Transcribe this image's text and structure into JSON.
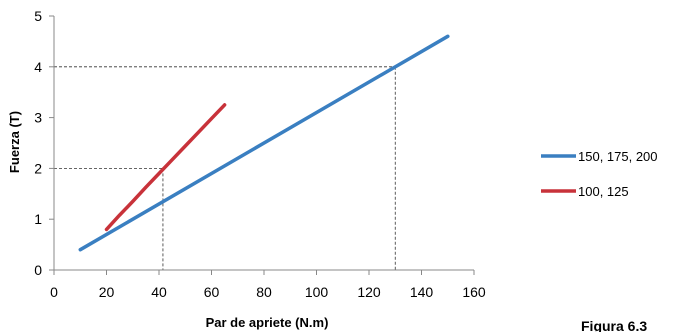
{
  "chart_data": {
    "type": "line",
    "xlabel": "Par de apriete (N.m)",
    "ylabel": "Fuerza (T)",
    "xlim": [
      0,
      160
    ],
    "ylim": [
      0,
      5
    ],
    "x_ticks": [
      0,
      20,
      40,
      60,
      80,
      100,
      120,
      140,
      160
    ],
    "y_ticks": [
      0,
      1,
      2,
      3,
      4,
      5
    ],
    "x_tick_labels": [
      "0",
      "20",
      "40",
      "60",
      "80",
      "100",
      "120",
      "140",
      "160"
    ],
    "y_tick_labels": [
      "0",
      "1",
      "2",
      "3",
      "4",
      "5"
    ],
    "grid": false,
    "legend_position": "right",
    "series": [
      {
        "name": "150, 175, 200",
        "color": "#3a7fc1",
        "x": [
          10,
          150
        ],
        "y": [
          0.4,
          4.6
        ]
      },
      {
        "name": "100, 125",
        "color": "#c8323a",
        "x": [
          20,
          25,
          30,
          35,
          40,
          45,
          50,
          55,
          60,
          65
        ],
        "y": [
          0.8,
          1.08,
          1.35,
          1.63,
          1.9,
          2.17,
          2.44,
          2.71,
          2.98,
          3.25
        ]
      }
    ],
    "reference_lines": [
      {
        "x": 41.5,
        "y": 2
      },
      {
        "x": 130,
        "y": 4
      }
    ],
    "caption": "Figura 6.3"
  }
}
